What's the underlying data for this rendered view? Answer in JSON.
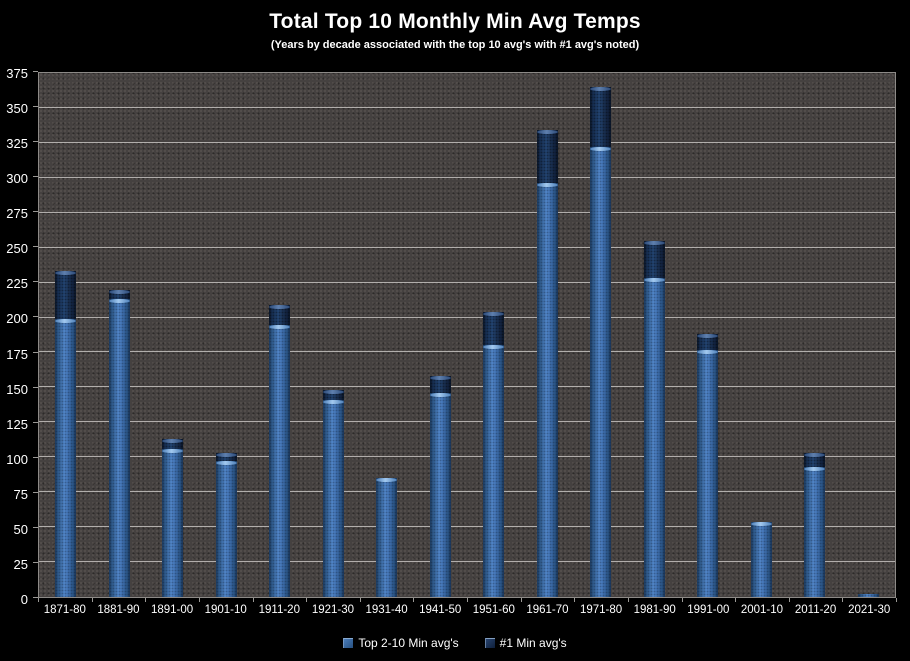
{
  "title": "Total Top 10 Monthly Min Avg Temps",
  "subtitle": "(Years by decade associated with the top 10 avg's with #1 avg's noted)",
  "colors": {
    "background": "#000000",
    "plot_background": "#454140",
    "gridline": "#c4c1be",
    "text": "#ffffff",
    "series_top2_10": "#3f6fae",
    "series_number1": "#16294a"
  },
  "chart_data": {
    "type": "bar",
    "stacked": true,
    "title": "Total Top 10 Monthly Min Avg Temps",
    "subtitle": "(Years by decade associated with the top 10 avg's with #1 avg's noted)",
    "xlabel": "",
    "ylabel": "",
    "ylim": [
      0,
      375
    ],
    "ytick_step": 25,
    "grid": "horizontal",
    "legend_position": "bottom",
    "categories": [
      "1871-80",
      "1881-90",
      "1891-00",
      "1901-10",
      "1911-20",
      "1921-30",
      "1931-40",
      "1941-50",
      "1951-60",
      "1961-70",
      "1971-80",
      "1981-90",
      "1991-00",
      "2001-10",
      "2011-20",
      "2021-30"
    ],
    "series": [
      {
        "name": "Top 2-10 Min avg's",
        "color": "#3f6fae",
        "values": [
          199,
          213,
          106,
          97,
          195,
          141,
          85,
          146,
          180,
          296,
          322,
          228,
          177,
          54,
          93,
          2
        ]
      },
      {
        "name": "#1 Min avg's",
        "color": "#16294a",
        "values": [
          34,
          7,
          7,
          6,
          14,
          7,
          0,
          12,
          24,
          38,
          43,
          27,
          11,
          0,
          10,
          0
        ]
      }
    ],
    "totals": [
      233,
      220,
      113,
      103,
      209,
      148,
      85,
      158,
      204,
      334,
      365,
      255,
      188,
      54,
      103,
      2
    ]
  }
}
